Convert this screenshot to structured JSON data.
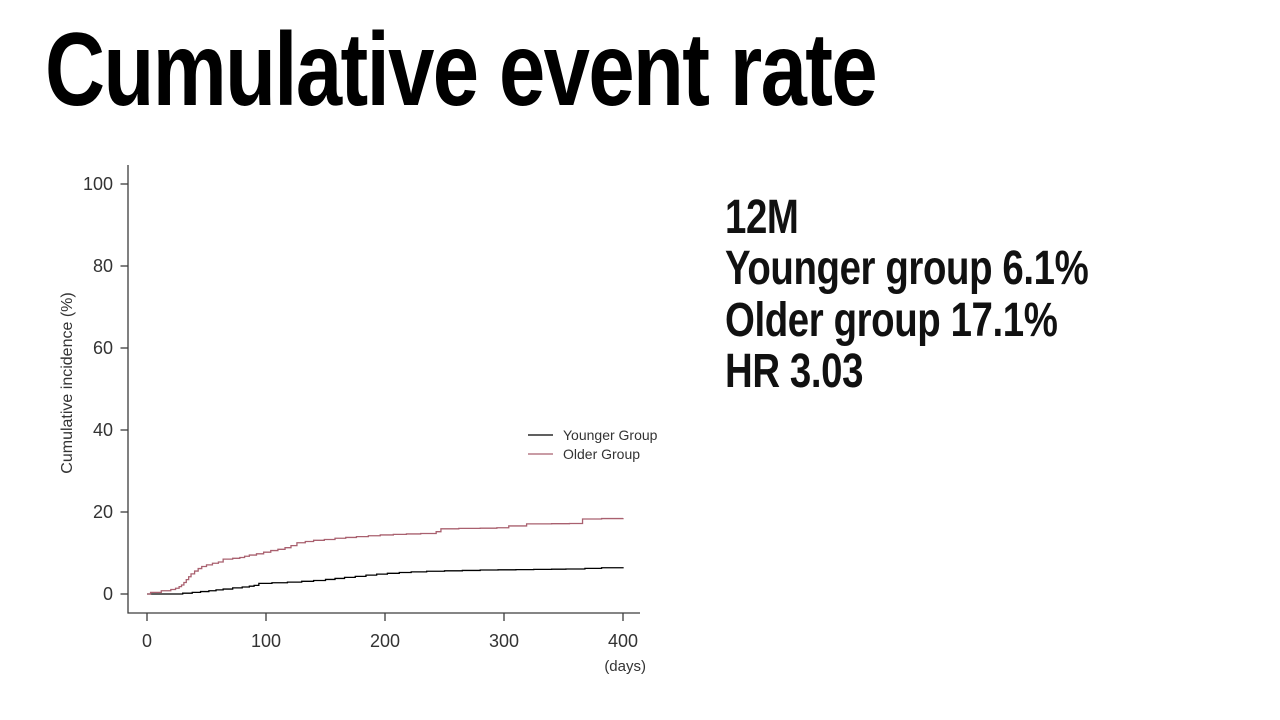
{
  "slide": {
    "title": "Cumulative event rate",
    "annotation": {
      "lines": [
        "12M",
        "Younger group 6.1%",
        "Older group 17.1%",
        "HR 3.03"
      ]
    }
  },
  "chart_data": {
    "type": "line",
    "subtype": "step-after",
    "title": "",
    "xlabel": "(days)",
    "ylabel": "Cumulative incidence (%)",
    "xlim": [
      0,
      400
    ],
    "ylim": [
      0,
      100
    ],
    "xticks": [
      0,
      100,
      200,
      300,
      400
    ],
    "yticks": [
      0,
      20,
      40,
      60,
      80,
      100
    ],
    "grid": false,
    "legend_position": "center-right",
    "axis_color": "#3c3c3c",
    "series": [
      {
        "name": "Younger Group",
        "color": "#000000",
        "points": [
          [
            0,
            0
          ],
          [
            30,
            0.2
          ],
          [
            38,
            0.4
          ],
          [
            45,
            0.6
          ],
          [
            52,
            0.8
          ],
          [
            58,
            1.0
          ],
          [
            64,
            1.2
          ],
          [
            72,
            1.5
          ],
          [
            80,
            1.7
          ],
          [
            86,
            1.9
          ],
          [
            90,
            2.1
          ],
          [
            94,
            2.6
          ],
          [
            105,
            2.75
          ],
          [
            118,
            2.9
          ],
          [
            130,
            3.1
          ],
          [
            140,
            3.3
          ],
          [
            150,
            3.55
          ],
          [
            158,
            3.8
          ],
          [
            166,
            4.05
          ],
          [
            175,
            4.3
          ],
          [
            184,
            4.6
          ],
          [
            193,
            4.85
          ],
          [
            202,
            5.05
          ],
          [
            212,
            5.25
          ],
          [
            222,
            5.4
          ],
          [
            235,
            5.55
          ],
          [
            250,
            5.65
          ],
          [
            265,
            5.75
          ],
          [
            280,
            5.85
          ],
          [
            295,
            5.9
          ],
          [
            310,
            5.95
          ],
          [
            325,
            6.0
          ],
          [
            340,
            6.05
          ],
          [
            352,
            6.1
          ],
          [
            368,
            6.25
          ],
          [
            382,
            6.4
          ],
          [
            400,
            6.55
          ]
        ]
      },
      {
        "name": "Older Group",
        "color": "#a9606f",
        "points": [
          [
            0,
            0
          ],
          [
            3,
            0.4
          ],
          [
            12,
            0.8
          ],
          [
            20,
            1.1
          ],
          [
            24,
            1.4
          ],
          [
            27,
            1.8
          ],
          [
            29,
            2.2
          ],
          [
            31,
            2.8
          ],
          [
            33,
            3.5
          ],
          [
            35,
            4.2
          ],
          [
            37,
            4.9
          ],
          [
            40,
            5.6
          ],
          [
            43,
            6.2
          ],
          [
            46,
            6.7
          ],
          [
            50,
            7.1
          ],
          [
            55,
            7.5
          ],
          [
            60,
            7.8
          ],
          [
            64,
            8.5
          ],
          [
            72,
            8.7
          ],
          [
            78,
            8.9
          ],
          [
            82,
            9.2
          ],
          [
            86,
            9.5
          ],
          [
            92,
            9.8
          ],
          [
            98,
            10.2
          ],
          [
            104,
            10.6
          ],
          [
            110,
            10.9
          ],
          [
            116,
            11.3
          ],
          [
            121,
            11.8
          ],
          [
            126,
            12.5
          ],
          [
            133,
            12.8
          ],
          [
            140,
            13.1
          ],
          [
            149,
            13.3
          ],
          [
            158,
            13.6
          ],
          [
            167,
            13.8
          ],
          [
            176,
            14.0
          ],
          [
            186,
            14.2
          ],
          [
            196,
            14.4
          ],
          [
            207,
            14.55
          ],
          [
            218,
            14.65
          ],
          [
            230,
            14.75
          ],
          [
            243,
            15.2
          ],
          [
            247,
            15.9
          ],
          [
            262,
            16.0
          ],
          [
            280,
            16.05
          ],
          [
            294,
            16.15
          ],
          [
            304,
            16.6
          ],
          [
            319,
            17.1
          ],
          [
            340,
            17.15
          ],
          [
            355,
            17.2
          ],
          [
            366,
            18.3
          ],
          [
            382,
            18.4
          ],
          [
            400,
            18.5
          ]
        ]
      }
    ]
  }
}
